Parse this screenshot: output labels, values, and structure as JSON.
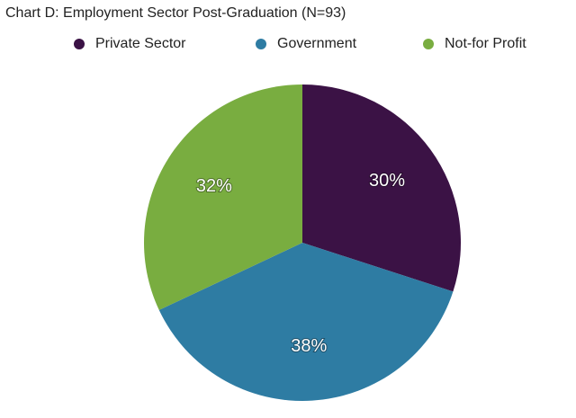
{
  "chart_data": {
    "type": "pie",
    "title": "Chart D: Employment Sector Post-Graduation (N=93)",
    "categories": [
      "Private Sector",
      "Government",
      "Not-for Profit"
    ],
    "values": [
      30,
      38,
      32
    ],
    "value_labels": [
      "30%",
      "38%",
      "32%"
    ],
    "colors": [
      "#3b1245",
      "#2e7ca3",
      "#79ad40"
    ]
  }
}
